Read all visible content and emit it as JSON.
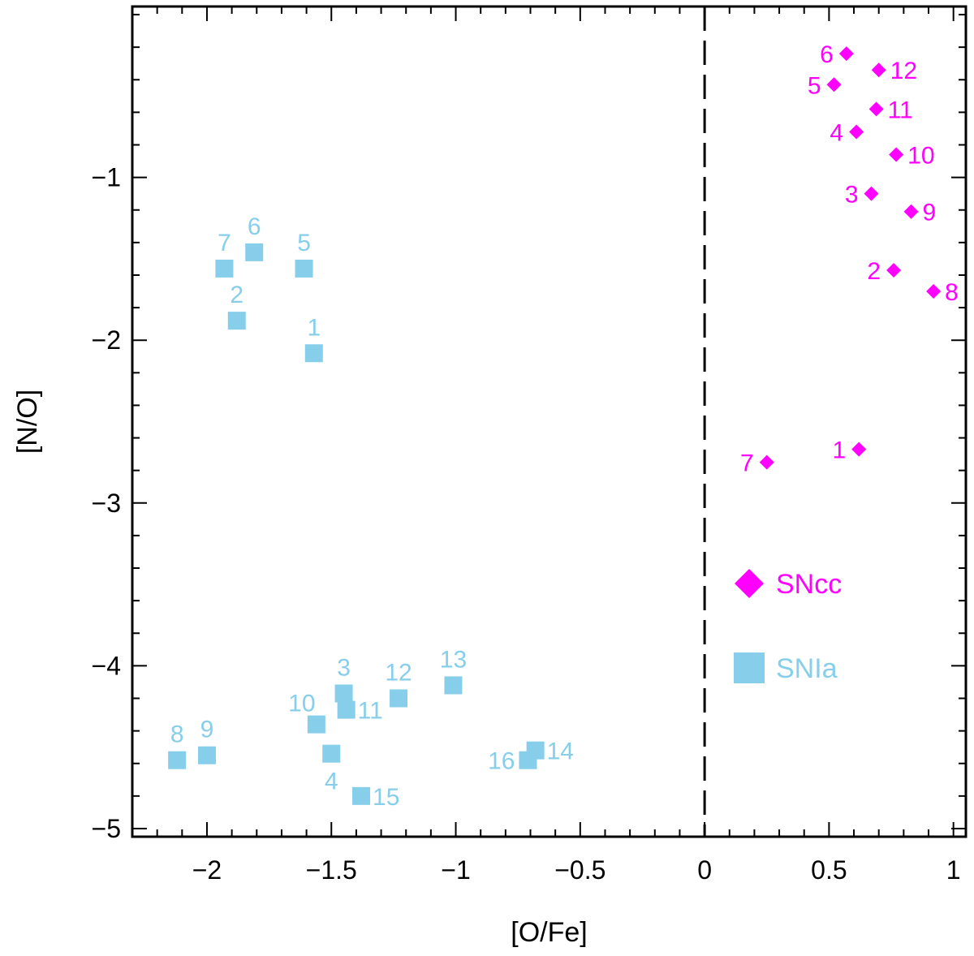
{
  "chart_data": {
    "type": "scatter",
    "title": "",
    "xlabel": "[O/Fe]",
    "ylabel": "[N/O]",
    "xlim": [
      -2.3,
      1.05
    ],
    "ylim": [
      -5.05,
      0.05
    ],
    "xticks": [
      -2,
      -1.5,
      -1,
      -0.5,
      0,
      0.5,
      1
    ],
    "xtick_labels": [
      "−2",
      "−1.5",
      "−1",
      "−0.5",
      "0",
      "0.5",
      "1"
    ],
    "yticks": [
      -5,
      -4,
      -3,
      -2,
      -1
    ],
    "ytick_labels": [
      "−5",
      "−4",
      "−3",
      "−2",
      "−1"
    ],
    "x_minor_step": 0.1,
    "y_minor_step": 0.2,
    "reference_line": {
      "x": 0,
      "style": "dashed"
    },
    "legend_position": "lower-right",
    "series": [
      {
        "name": "SNcc",
        "marker": "diamond",
        "color": "#ff00ff",
        "points": [
          {
            "label": "1",
            "x": 0.62,
            "y": -2.67,
            "label_side": "left"
          },
          {
            "label": "2",
            "x": 0.76,
            "y": -1.57,
            "label_side": "left"
          },
          {
            "label": "3",
            "x": 0.67,
            "y": -1.1,
            "label_side": "left"
          },
          {
            "label": "4",
            "x": 0.61,
            "y": -0.72,
            "label_side": "left"
          },
          {
            "label": "5",
            "x": 0.52,
            "y": -0.43,
            "label_side": "left"
          },
          {
            "label": "6",
            "x": 0.57,
            "y": -0.24,
            "label_side": "left"
          },
          {
            "label": "7",
            "x": 0.25,
            "y": -2.75,
            "label_side": "left"
          },
          {
            "label": "8",
            "x": 0.92,
            "y": -1.7,
            "label_side": "right"
          },
          {
            "label": "9",
            "x": 0.83,
            "y": -1.21,
            "label_side": "right"
          },
          {
            "label": "10",
            "x": 0.77,
            "y": -0.86,
            "label_side": "right"
          },
          {
            "label": "11",
            "x": 0.69,
            "y": -0.58,
            "label_side": "right"
          },
          {
            "label": "12",
            "x": 0.7,
            "y": -0.34,
            "label_side": "right"
          }
        ]
      },
      {
        "name": "SNIa",
        "marker": "square",
        "color": "#87ceeb",
        "points": [
          {
            "label": "1",
            "x": -1.57,
            "y": -2.08,
            "label_side": "above"
          },
          {
            "label": "2",
            "x": -1.88,
            "y": -1.88,
            "label_side": "above"
          },
          {
            "label": "3",
            "x": -1.45,
            "y": -4.17,
            "label_side": "above"
          },
          {
            "label": "4",
            "x": -1.5,
            "y": -4.54,
            "label_side": "below"
          },
          {
            "label": "5",
            "x": -1.61,
            "y": -1.56,
            "label_side": "above"
          },
          {
            "label": "6",
            "x": -1.81,
            "y": -1.46,
            "label_side": "above"
          },
          {
            "label": "7",
            "x": -1.93,
            "y": -1.56,
            "label_side": "above"
          },
          {
            "label": "8",
            "x": -2.12,
            "y": -4.58,
            "label_side": "above"
          },
          {
            "label": "9",
            "x": -2.0,
            "y": -4.55,
            "label_side": "above"
          },
          {
            "label": "10",
            "x": -1.56,
            "y": -4.36,
            "label_side": "above-left"
          },
          {
            "label": "11",
            "x": -1.44,
            "y": -4.27,
            "label_side": "right"
          },
          {
            "label": "12",
            "x": -1.23,
            "y": -4.2,
            "label_side": "above"
          },
          {
            "label": "13",
            "x": -1.01,
            "y": -4.12,
            "label_side": "above"
          },
          {
            "label": "14",
            "x": -0.68,
            "y": -4.52,
            "label_side": "right"
          },
          {
            "label": "15",
            "x": -1.38,
            "y": -4.8,
            "label_side": "right"
          },
          {
            "label": "16",
            "x": -0.71,
            "y": -4.58,
            "label_side": "left"
          }
        ]
      }
    ]
  }
}
